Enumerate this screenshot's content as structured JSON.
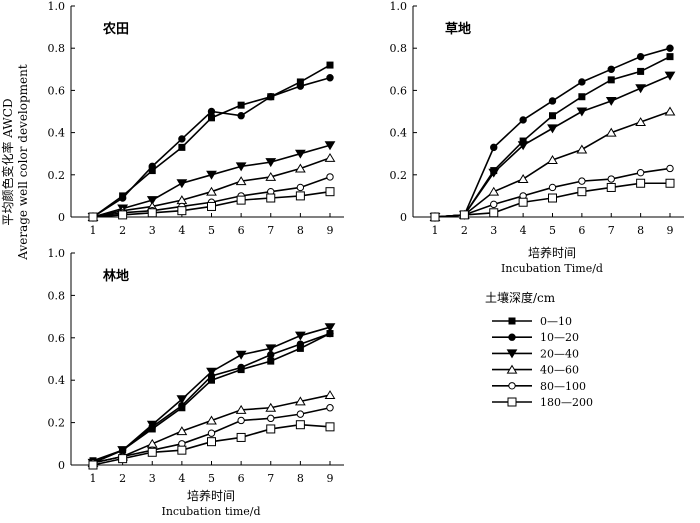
{
  "ylabel_cn": "平均颜色变化率 AWCD",
  "ylabel_en": "Average well color development",
  "legend": {
    "title": "土壤深度/cm",
    "items": [
      "0—10",
      "10—20",
      "20—40",
      "40—60",
      "80—100",
      "180—200"
    ]
  },
  "chart_data": [
    {
      "type": "line",
      "title": "农田",
      "xlabel": "",
      "xlabel_en": "",
      "x": [
        1,
        2,
        3,
        4,
        5,
        6,
        7,
        8,
        9
      ],
      "ylim": [
        0,
        1.0
      ],
      "yticks": [
        "0",
        "0.2",
        "0.4",
        "0.6",
        "0.8",
        "1.0"
      ],
      "series": [
        {
          "name": "0—10",
          "marker": "square-filled",
          "values": [
            0,
            0.1,
            0.22,
            0.33,
            0.47,
            0.53,
            0.57,
            0.64,
            0.72
          ]
        },
        {
          "name": "10—20",
          "marker": "circle-filled",
          "values": [
            0,
            0.09,
            0.24,
            0.37,
            0.5,
            0.48,
            0.57,
            0.62,
            0.66
          ]
        },
        {
          "name": "20—40",
          "marker": "triangle-filled",
          "values": [
            0,
            0.04,
            0.08,
            0.16,
            0.2,
            0.24,
            0.26,
            0.3,
            0.34
          ]
        },
        {
          "name": "40—60",
          "marker": "triangle-open",
          "values": [
            0,
            0.03,
            0.05,
            0.08,
            0.12,
            0.17,
            0.19,
            0.23,
            0.28
          ]
        },
        {
          "name": "80—100",
          "marker": "circle-open",
          "values": [
            0,
            0.02,
            0.03,
            0.05,
            0.07,
            0.1,
            0.12,
            0.14,
            0.19
          ]
        },
        {
          "name": "180—200",
          "marker": "square-open",
          "values": [
            0,
            0.01,
            0.02,
            0.03,
            0.05,
            0.08,
            0.09,
            0.1,
            0.12
          ]
        }
      ]
    },
    {
      "type": "line",
      "title": "草地",
      "xlabel": "培养时间",
      "xlabel_en": "Incubation Time/d",
      "x": [
        1,
        2,
        3,
        4,
        5,
        6,
        7,
        8,
        9
      ],
      "ylim": [
        0,
        1.0
      ],
      "yticks": [
        "0",
        "0.2",
        "0.4",
        "0.6",
        "0.8",
        "1.0"
      ],
      "series": [
        {
          "name": "0—10",
          "marker": "square-filled",
          "values": [
            0,
            0.01,
            0.22,
            0.36,
            0.48,
            0.57,
            0.65,
            0.69,
            0.76
          ]
        },
        {
          "name": "10—20",
          "marker": "circle-filled",
          "values": [
            0,
            0.01,
            0.33,
            0.46,
            0.55,
            0.64,
            0.7,
            0.76,
            0.8
          ]
        },
        {
          "name": "20—40",
          "marker": "triangle-filled",
          "values": [
            0,
            0.01,
            0.21,
            0.34,
            0.42,
            0.5,
            0.55,
            0.61,
            0.67
          ]
        },
        {
          "name": "40—60",
          "marker": "triangle-open",
          "values": [
            0,
            0.01,
            0.12,
            0.18,
            0.27,
            0.32,
            0.4,
            0.45,
            0.5
          ]
        },
        {
          "name": "80—100",
          "marker": "circle-open",
          "values": [
            0,
            0.01,
            0.06,
            0.1,
            0.14,
            0.17,
            0.18,
            0.21,
            0.23
          ]
        },
        {
          "name": "180—200",
          "marker": "square-open",
          "values": [
            0,
            0.01,
            0.02,
            0.07,
            0.09,
            0.12,
            0.14,
            0.16,
            0.16
          ]
        }
      ]
    },
    {
      "type": "line",
      "title": "林地",
      "xlabel": "培养时间",
      "xlabel_en": "Incubation time/d",
      "x": [
        1,
        2,
        3,
        4,
        5,
        6,
        7,
        8,
        9
      ],
      "ylim": [
        0,
        1.0
      ],
      "yticks": [
        "0",
        "0.2",
        "0.4",
        "0.6",
        "0.8",
        "1.0"
      ],
      "series": [
        {
          "name": "0—10",
          "marker": "square-filled",
          "values": [
            0.02,
            0.07,
            0.17,
            0.27,
            0.4,
            0.45,
            0.49,
            0.55,
            0.62
          ]
        },
        {
          "name": "10—20",
          "marker": "circle-filled",
          "values": [
            0.01,
            0.07,
            0.18,
            0.28,
            0.42,
            0.46,
            0.52,
            0.57,
            0.62
          ]
        },
        {
          "name": "20—40",
          "marker": "triangle-filled",
          "values": [
            0.01,
            0.07,
            0.19,
            0.31,
            0.44,
            0.52,
            0.55,
            0.61,
            0.65
          ]
        },
        {
          "name": "40—60",
          "marker": "triangle-open",
          "values": [
            0.01,
            0.04,
            0.1,
            0.16,
            0.21,
            0.26,
            0.27,
            0.3,
            0.33
          ]
        },
        {
          "name": "80—100",
          "marker": "circle-open",
          "values": [
            0.01,
            0.04,
            0.07,
            0.1,
            0.15,
            0.21,
            0.22,
            0.24,
            0.27
          ]
        },
        {
          "name": "180—200",
          "marker": "square-open",
          "values": [
            0,
            0.03,
            0.06,
            0.07,
            0.11,
            0.13,
            0.17,
            0.19,
            0.18
          ]
        }
      ]
    }
  ]
}
